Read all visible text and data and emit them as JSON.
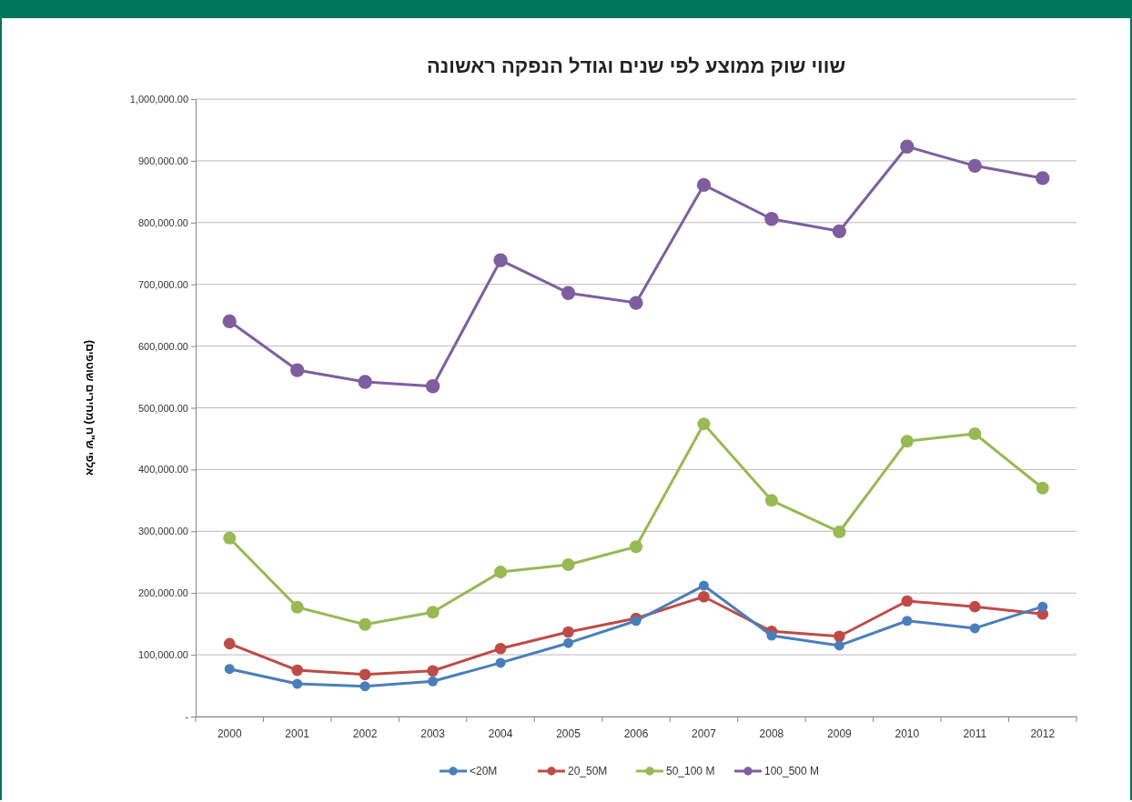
{
  "chart_data": {
    "type": "line",
    "title": "שווי שוק ממוצע לפי שנים וגודל הנפקה ראשונה",
    "ylabel": "אלפי ש\"ח (מחירים שוטפים)",
    "categories": [
      "2000",
      "2001",
      "2002",
      "2003",
      "2004",
      "2005",
      "2006",
      "2007",
      "2008",
      "2009",
      "2010",
      "2011",
      "2012"
    ],
    "series": [
      {
        "name": "<20M",
        "color": "#4a7ebb",
        "values": [
          77000,
          53000,
          49000,
          57000,
          87000,
          119000,
          155000,
          212000,
          131000,
          115000,
          155000,
          143000,
          178000
        ]
      },
      {
        "name": "20_50M",
        "color": "#be4b48",
        "values": [
          118000,
          75000,
          68000,
          74000,
          110000,
          137000,
          159000,
          194000,
          138000,
          130000,
          187000,
          178000,
          166000
        ]
      },
      {
        "name": "50_100 M",
        "color": "#98b954",
        "values": [
          289000,
          177000,
          149000,
          169000,
          234000,
          246000,
          275000,
          474000,
          350000,
          299000,
          446000,
          458000,
          370000
        ]
      },
      {
        "name": "100_500 M",
        "color": "#7d5fa0",
        "values": [
          640000,
          561000,
          542000,
          535000,
          739000,
          686000,
          670000,
          861000,
          806000,
          786000,
          923000,
          892000,
          872000
        ]
      }
    ],
    "ylim": [
      0,
      1000000
    ],
    "yticks": [
      {
        "value": 0,
        "label": "-"
      },
      {
        "value": 100000,
        "label": "100,000.00"
      },
      {
        "value": 200000,
        "label": "200,000.00"
      },
      {
        "value": 300000,
        "label": "300,000.00"
      },
      {
        "value": 400000,
        "label": "400,000.00"
      },
      {
        "value": 500000,
        "label": "500,000.00"
      },
      {
        "value": 600000,
        "label": "600,000.00"
      },
      {
        "value": 700000,
        "label": "700,000.00"
      },
      {
        "value": 800000,
        "label": "800,000.00"
      },
      {
        "value": 900000,
        "label": "900,000.00"
      },
      {
        "value": 1000000,
        "label": "1,000,000.00"
      }
    ],
    "grid": "y",
    "legend": "bottom",
    "marker": "circle",
    "line_style": "solid"
  }
}
